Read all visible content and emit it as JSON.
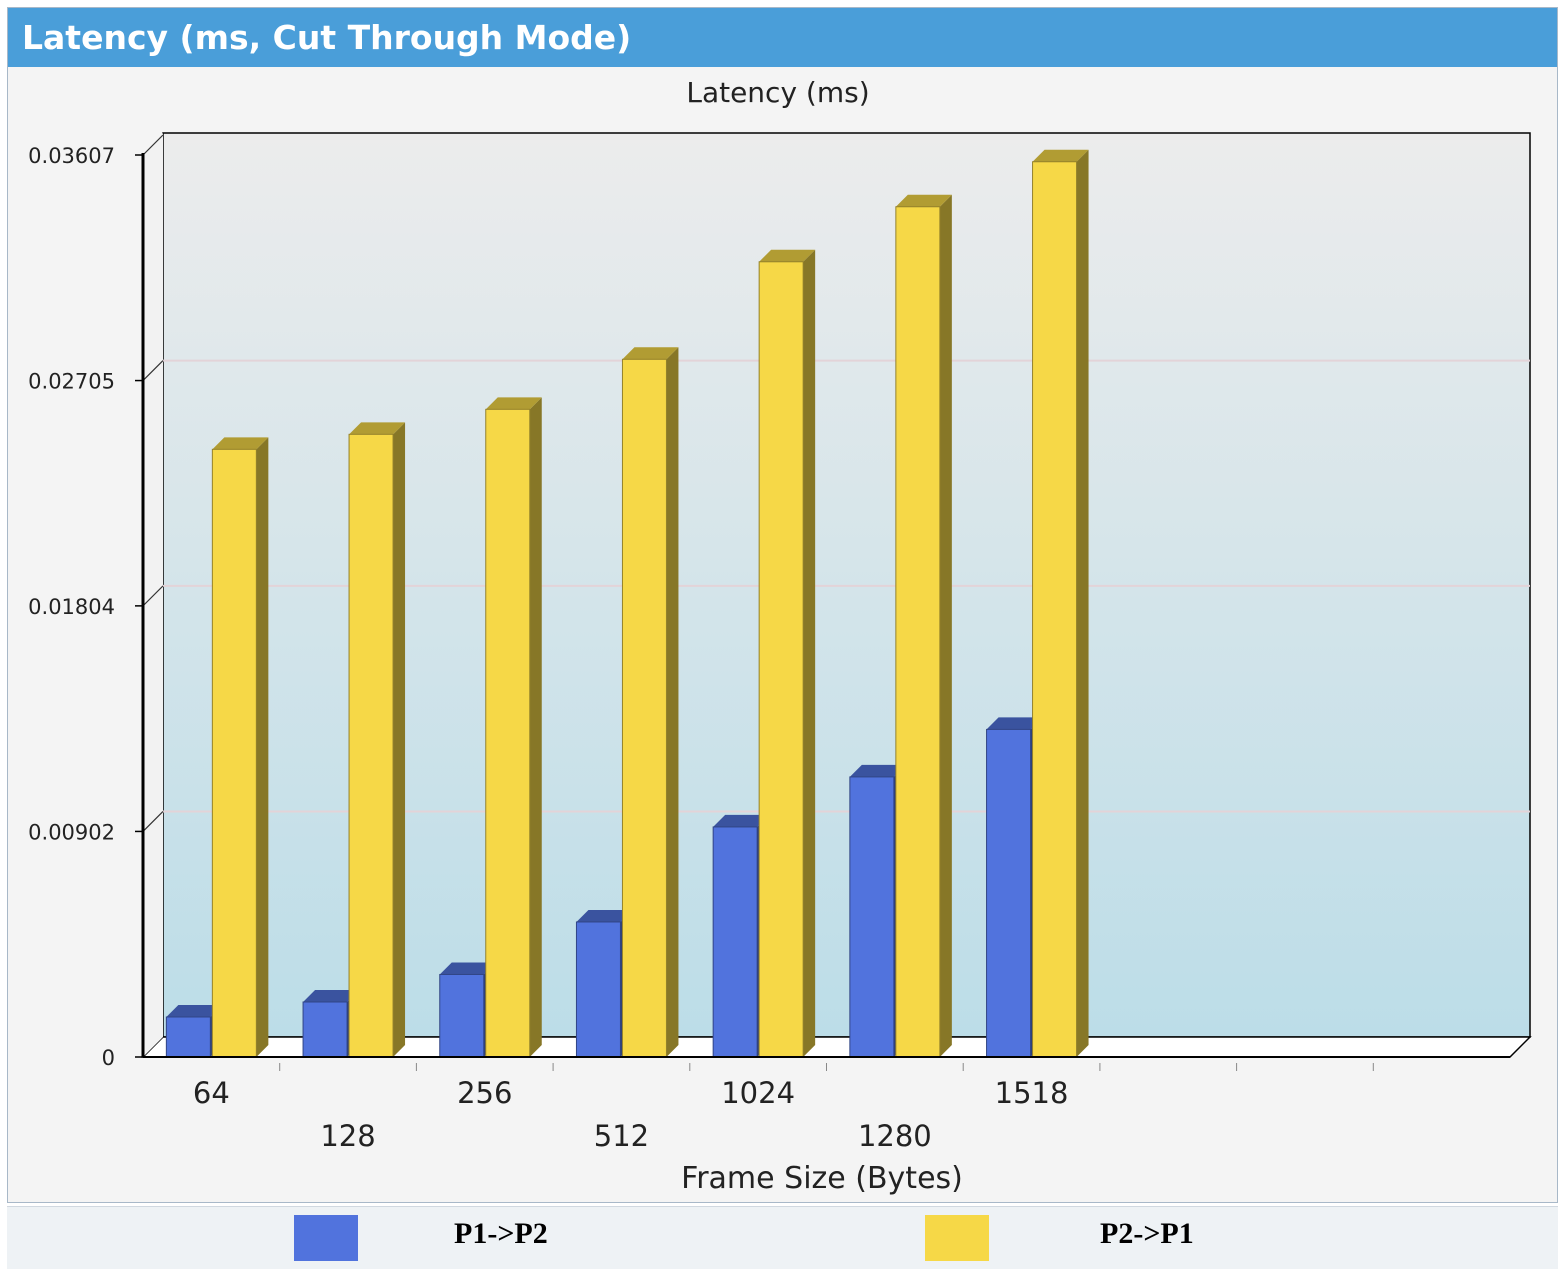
{
  "panel": {
    "title": "Latency (ms, Cut Through Mode)"
  },
  "colors": {
    "header": "#4a9ed9",
    "series1": "#5173dd",
    "series2": "#f6d847",
    "axis": "#000000"
  },
  "chart_data": {
    "type": "bar",
    "title": "Latency (ms)",
    "xlabel": "Frame Size (Bytes)",
    "ylabel": "",
    "categories": [
      "64",
      "128",
      "256",
      "512",
      "1024",
      "1280",
      "1518"
    ],
    "series": [
      {
        "name": "P1->P2",
        "values": [
          0.0016,
          0.0022,
          0.0033,
          0.0054,
          0.0092,
          0.0112,
          0.0131
        ]
      },
      {
        "name": "P2->P1",
        "values": [
          0.0243,
          0.0249,
          0.0259,
          0.0279,
          0.0318,
          0.034,
          0.0358
        ]
      }
    ],
    "yticks": [
      "0",
      "0.00902",
      "0.01804",
      "0.02705",
      "0.03607"
    ],
    "ylim": [
      0,
      0.03607
    ],
    "x_slots": 10,
    "grid": true,
    "legend": "bottom",
    "style": "3d-bars"
  }
}
